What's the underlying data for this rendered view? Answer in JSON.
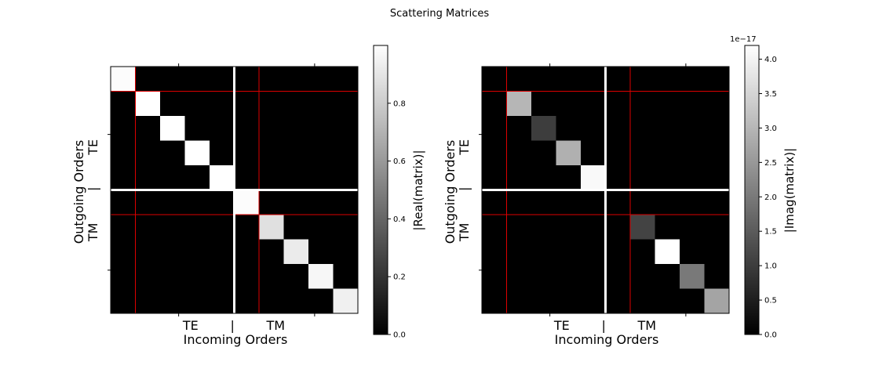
{
  "figure": {
    "suptitle": "Scattering Matrices"
  },
  "chart_data": [
    {
      "type": "heatmap",
      "size": 10,
      "xlabel": "Incoming Orders",
      "x_group_label": "TE        |        TM",
      "ylabel": "Outgoing Orders",
      "y_group_label": "TM        |        TE",
      "colorbar_label": "|Real(matrix)|",
      "colorbar_offset": "",
      "vmin": 0,
      "vmax": 1.0,
      "colorbar_ticks": [
        0.0,
        0.2,
        0.4,
        0.6,
        0.8
      ],
      "colorbar_tick_labels": [
        "0.0",
        "0.2",
        "0.4",
        "0.6",
        "0.8"
      ],
      "diagonal_values": [
        0.99,
        1.0,
        1.0,
        1.0,
        1.0,
        0.99,
        0.88,
        0.92,
        0.97,
        0.94
      ],
      "off_diagonal_value": 0,
      "white_divider_at": 5,
      "red_lines_at": [
        1,
        6
      ]
    },
    {
      "type": "heatmap",
      "size": 10,
      "xlabel": "Incoming Orders",
      "x_group_label": "TE        |        TM",
      "ylabel": "Outgoing Orders",
      "y_group_label": "TM        |        TE",
      "colorbar_label": "|Imag(matrix)|",
      "colorbar_offset": "1e−17",
      "vmin": 0,
      "vmax": 4.2,
      "colorbar_ticks": [
        0.0,
        0.5,
        1.0,
        1.5,
        2.0,
        2.5,
        3.0,
        3.5,
        4.0
      ],
      "colorbar_tick_labels": [
        "0.0",
        "0.5",
        "1.0",
        "1.5",
        "2.0",
        "2.5",
        "3.0",
        "3.5",
        "4.0"
      ],
      "diagonal_values": [
        0,
        3.0,
        1.0,
        2.9,
        4.1,
        0,
        1.1,
        4.2,
        2.0,
        2.7
      ],
      "off_diagonal_value": 0,
      "white_divider_at": 5,
      "red_lines_at": [
        1,
        6
      ]
    }
  ]
}
